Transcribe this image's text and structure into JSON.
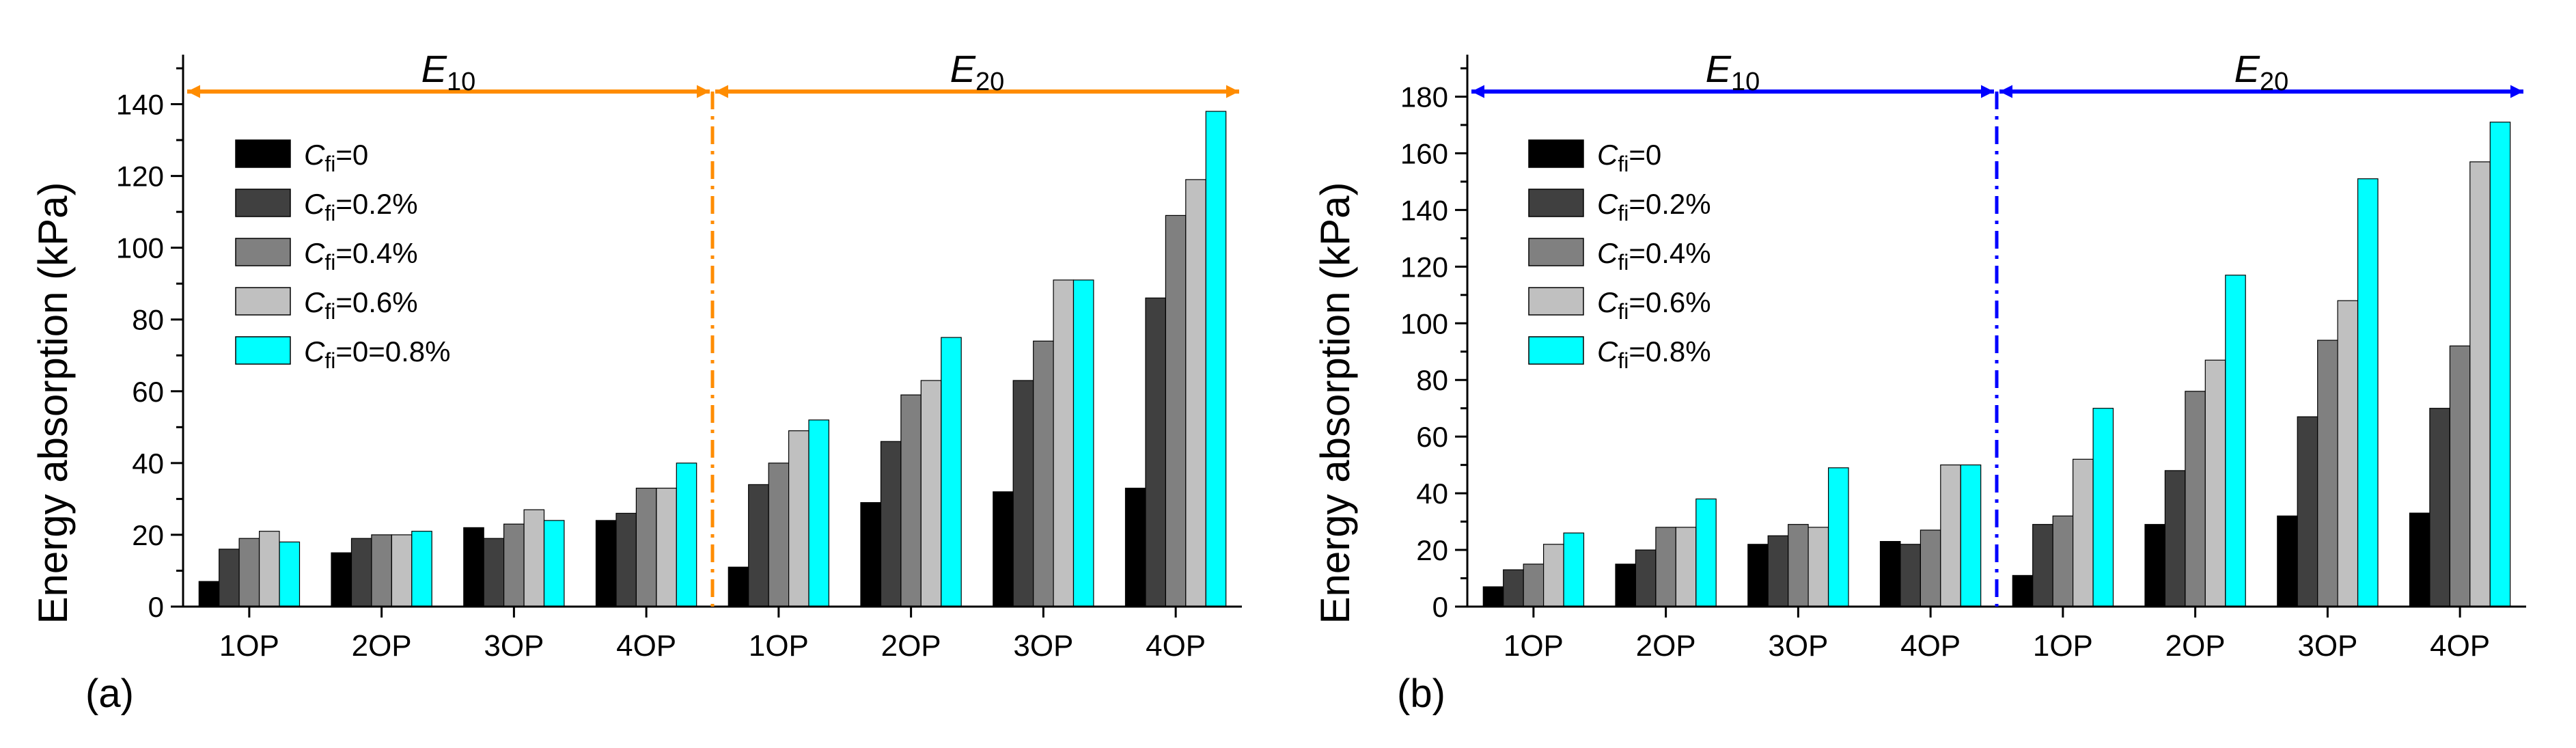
{
  "chart_data": [
    {
      "panel": "(a)",
      "type": "bar",
      "ylabel": "Energy absorption (kPa)",
      "ylim": [
        0,
        150
      ],
      "yticks": [
        0,
        20,
        40,
        60,
        80,
        100,
        120,
        140
      ],
      "grid": false,
      "legend_position": "top-left",
      "groups": [
        {
          "label_main": "E",
          "label_sub": "10"
        },
        {
          "label_main": "E",
          "label_sub": "20"
        }
      ],
      "divider_color": "#FF8C00",
      "categories": [
        "1OP",
        "2OP",
        "3OP",
        "4OP",
        "1OP",
        "2OP",
        "3OP",
        "4OP"
      ],
      "series": [
        {
          "name": "C_fi=0",
          "legend_prefix": "C",
          "legend_sub": "fi",
          "legend_suffix": "=0",
          "color": "#000000",
          "values": [
            7,
            15,
            22,
            24,
            11,
            29,
            32,
            33
          ]
        },
        {
          "name": "C_fi=0.2%",
          "legend_prefix": "C",
          "legend_sub": "fi",
          "legend_suffix": "=0.2%",
          "color": "#404040",
          "values": [
            16,
            19,
            19,
            26,
            34,
            46,
            63,
            86
          ]
        },
        {
          "name": "C_fi=0.4%",
          "legend_prefix": "C",
          "legend_sub": "fi",
          "legend_suffix": "=0.4%",
          "color": "#808080",
          "values": [
            19,
            20,
            23,
            33,
            40,
            59,
            74,
            109
          ]
        },
        {
          "name": "C_fi=0.6%",
          "legend_prefix": "C",
          "legend_sub": "fi",
          "legend_suffix": "=0.6%",
          "color": "#C0C0C0",
          "values": [
            21,
            20,
            27,
            33,
            49,
            63,
            91,
            119
          ]
        },
        {
          "name": "C_fi=0=0.8%",
          "legend_prefix": "C",
          "legend_sub": "fi",
          "legend_suffix": "=0=0.8%",
          "color": "#00FFFF",
          "values": [
            18,
            21,
            24,
            40,
            52,
            75,
            91,
            138
          ]
        }
      ]
    },
    {
      "panel": "(b)",
      "type": "bar",
      "ylabel": "Energy absorption (kPa)",
      "ylim": [
        0,
        190
      ],
      "yticks": [
        0,
        20,
        40,
        60,
        80,
        100,
        120,
        140,
        160,
        180
      ],
      "grid": false,
      "legend_position": "top-left",
      "groups": [
        {
          "label_main": "E",
          "label_sub": "10"
        },
        {
          "label_main": "E",
          "label_sub": "20"
        }
      ],
      "divider_color": "#0000FF",
      "categories": [
        "1OP",
        "2OP",
        "3OP",
        "4OP",
        "1OP",
        "2OP",
        "3OP",
        "4OP"
      ],
      "series": [
        {
          "name": "C_fi=0",
          "legend_prefix": "C",
          "legend_sub": "fi",
          "legend_suffix": "=0",
          "color": "#000000",
          "values": [
            7,
            15,
            22,
            23,
            11,
            29,
            32,
            33
          ]
        },
        {
          "name": "C_fi=0.2%",
          "legend_prefix": "C",
          "legend_sub": "fi",
          "legend_suffix": "=0.2%",
          "color": "#404040",
          "values": [
            13,
            20,
            25,
            22,
            29,
            48,
            67,
            70
          ]
        },
        {
          "name": "C_fi=0.4%",
          "legend_prefix": "C",
          "legend_sub": "fi",
          "legend_suffix": "=0.4%",
          "color": "#808080",
          "values": [
            15,
            28,
            29,
            27,
            32,
            76,
            94,
            92
          ]
        },
        {
          "name": "C_fi=0.6%",
          "legend_prefix": "C",
          "legend_sub": "fi",
          "legend_suffix": "=0.6%",
          "color": "#C0C0C0",
          "values": [
            22,
            28,
            28,
            50,
            52,
            87,
            108,
            157
          ]
        },
        {
          "name": "C_fi=0.8%",
          "legend_prefix": "C",
          "legend_sub": "fi",
          "legend_suffix": "=0.8%",
          "color": "#00FFFF",
          "values": [
            26,
            38,
            49,
            50,
            70,
            117,
            151,
            171
          ]
        }
      ]
    }
  ]
}
